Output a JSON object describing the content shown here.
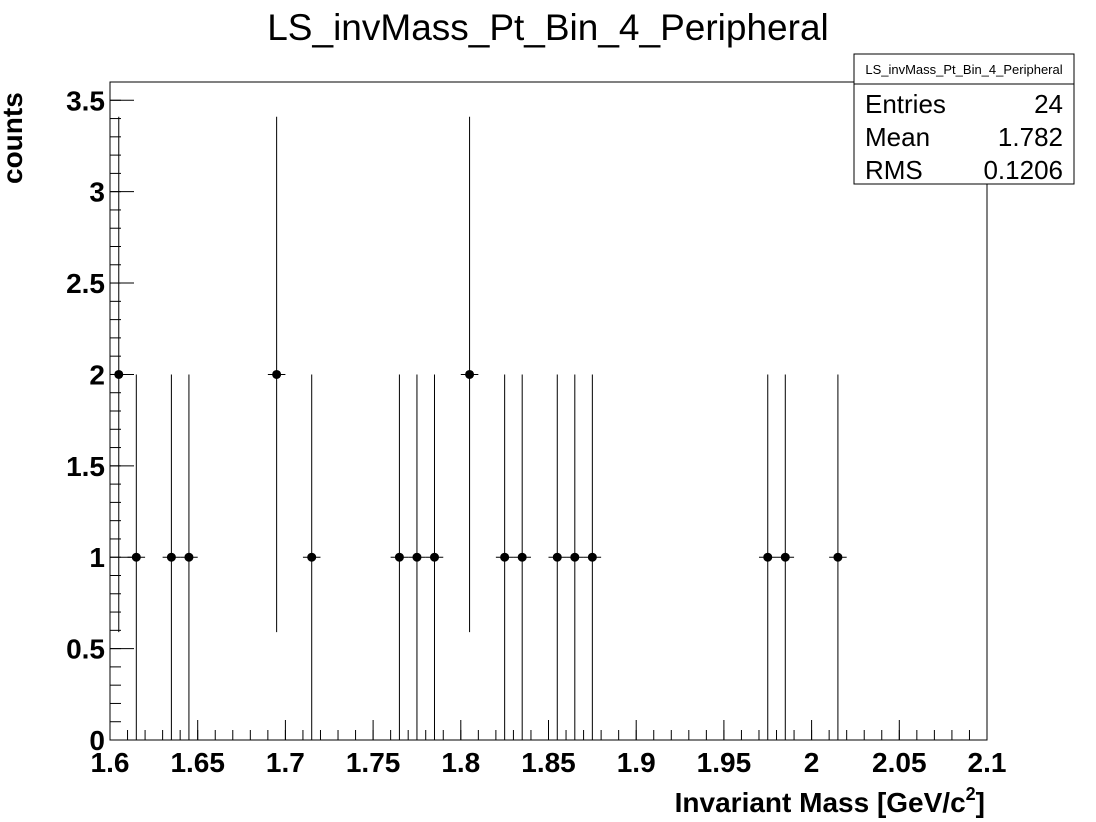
{
  "chart_data": {
    "type": "scatter",
    "title": "LS_invMass_Pt_Bin_4_Peripheral",
    "xlabel": "Invariant Mass [GeV/c",
    "xlabel_sup": "2",
    "xlabel_end": "]",
    "ylabel": "counts",
    "xlim": [
      1.6,
      2.1
    ],
    "ylim": [
      0,
      3.6
    ],
    "x_ticks": [
      1.6,
      1.65,
      1.7,
      1.75,
      1.8,
      1.85,
      1.9,
      1.95,
      2.0,
      2.05,
      2.1
    ],
    "x_tick_labels": [
      "1.6",
      "1.65",
      "1.7",
      "1.75",
      "1.8",
      "1.85",
      "1.9",
      "1.95",
      "2",
      "2.05",
      "2.1"
    ],
    "y_ticks": [
      0,
      0.5,
      1,
      1.5,
      2,
      2.5,
      3,
      3.5
    ],
    "y_tick_labels": [
      "0",
      "0.5",
      "1",
      "1.5",
      "2",
      "2.5",
      "3",
      "3.5"
    ],
    "grid": false,
    "bin_width": 0.01,
    "x_minor_step": 0.01,
    "y_minor_step": 0.1,
    "points": [
      {
        "x": 1.605,
        "y": 2,
        "yerr_low": 1.41,
        "yerr_high": 1.41
      },
      {
        "x": 1.615,
        "y": 1,
        "yerr_low": 1,
        "yerr_high": 1
      },
      {
        "x": 1.635,
        "y": 1,
        "yerr_low": 1,
        "yerr_high": 1
      },
      {
        "x": 1.645,
        "y": 1,
        "yerr_low": 1,
        "yerr_high": 1
      },
      {
        "x": 1.695,
        "y": 2,
        "yerr_low": 1.41,
        "yerr_high": 1.41
      },
      {
        "x": 1.715,
        "y": 1,
        "yerr_low": 1,
        "yerr_high": 1
      },
      {
        "x": 1.765,
        "y": 1,
        "yerr_low": 1,
        "yerr_high": 1
      },
      {
        "x": 1.775,
        "y": 1,
        "yerr_low": 1,
        "yerr_high": 1
      },
      {
        "x": 1.785,
        "y": 1,
        "yerr_low": 1,
        "yerr_high": 1
      },
      {
        "x": 1.805,
        "y": 2,
        "yerr_low": 1.41,
        "yerr_high": 1.41
      },
      {
        "x": 1.825,
        "y": 1,
        "yerr_low": 1,
        "yerr_high": 1
      },
      {
        "x": 1.835,
        "y": 1,
        "yerr_low": 1,
        "yerr_high": 1
      },
      {
        "x": 1.855,
        "y": 1,
        "yerr_low": 1,
        "yerr_high": 1
      },
      {
        "x": 1.865,
        "y": 1,
        "yerr_low": 1,
        "yerr_high": 1
      },
      {
        "x": 1.875,
        "y": 1,
        "yerr_low": 1,
        "yerr_high": 1
      },
      {
        "x": 1.975,
        "y": 1,
        "yerr_low": 1,
        "yerr_high": 1
      },
      {
        "x": 1.985,
        "y": 1,
        "yerr_low": 1,
        "yerr_high": 1
      },
      {
        "x": 2.015,
        "y": 1,
        "yerr_low": 1,
        "yerr_high": 1
      }
    ],
    "legend_placement": "top-right",
    "stats_box": {
      "title": "LS_invMass_Pt_Bin_4_Peripheral",
      "rows": [
        {
          "label": "Entries",
          "value": "24"
        },
        {
          "label": "Mean",
          "value": "1.782"
        },
        {
          "label": "RMS",
          "value": "0.1206"
        }
      ]
    }
  }
}
